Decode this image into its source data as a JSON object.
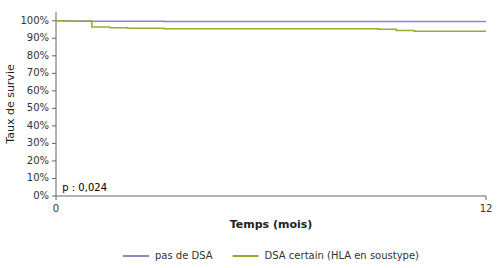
{
  "chart_data": {
    "type": "step",
    "xlabel": "Temps (mois)",
    "ylabel": "Taux de survie",
    "xlim": [
      0,
      12
    ],
    "ylim": [
      0.0,
      1.05
    ],
    "xticks": [
      0,
      12
    ],
    "yticks": [
      {
        "value": 0.0,
        "label": "0%"
      },
      {
        "value": 0.1,
        "label": "10%"
      },
      {
        "value": 0.2,
        "label": "20%"
      },
      {
        "value": 0.3,
        "label": "30%"
      },
      {
        "value": 0.4,
        "label": "40%"
      },
      {
        "value": 0.5,
        "label": "50%"
      },
      {
        "value": 0.6,
        "label": "60%"
      },
      {
        "value": 0.7,
        "label": "70%"
      },
      {
        "value": 0.8,
        "label": "80%"
      },
      {
        "value": 0.9,
        "label": "90%"
      },
      {
        "value": 1.0,
        "label": "100%"
      }
    ],
    "annotation": "p : 0,024",
    "grid": false,
    "legend": "bottom",
    "series": [
      {
        "name": "pas de DSA",
        "color": "#8888bb",
        "x": [
          0,
          0.2,
          0.5,
          1.0,
          2.0,
          3.0,
          4.0,
          5.0,
          6.0,
          7.0,
          8.0,
          9.0,
          10.0,
          11.0,
          12.0
        ],
        "values": [
          1.0,
          0.9985,
          0.998,
          0.997,
          0.997,
          0.996,
          0.996,
          0.996,
          0.996,
          0.996,
          0.996,
          0.996,
          0.996,
          0.996,
          0.996
        ]
      },
      {
        "name": "DSA certain (HLA en soustype)",
        "color": "#99aa33",
        "x": [
          0,
          0.2,
          0.5,
          1.0,
          1.5,
          2.0,
          3.0,
          4.0,
          5.0,
          6.0,
          7.0,
          8.0,
          9.0,
          9.5,
          10.0,
          11.0,
          12.0
        ],
        "values": [
          1.0,
          0.998,
          0.997,
          0.965,
          0.96,
          0.957,
          0.955,
          0.955,
          0.955,
          0.955,
          0.955,
          0.955,
          0.952,
          0.945,
          0.94,
          0.94,
          0.94
        ]
      }
    ]
  }
}
